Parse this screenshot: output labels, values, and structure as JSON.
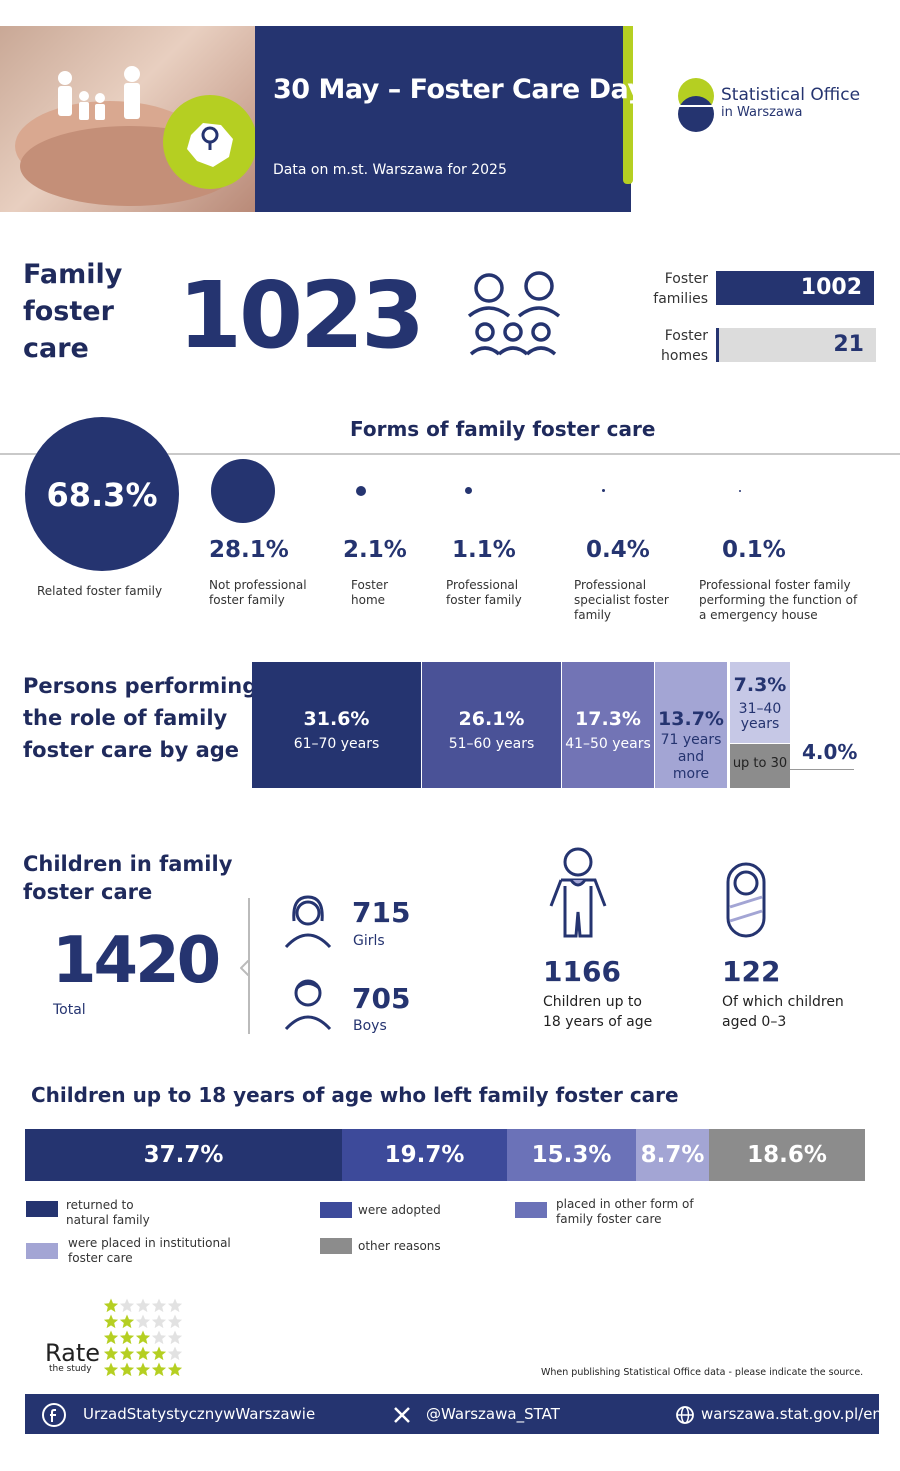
{
  "header": {
    "title": "30 May – Foster Care Day",
    "subtitle": "Data on m.st. Warszawa for 2025",
    "logo_line1": "Statistical Office",
    "logo_line2": "in Warszawa"
  },
  "family_foster_care": {
    "title_l1": "Family",
    "title_l2": "foster",
    "title_l3": "care",
    "total": "1023",
    "foster_families_label_l1": "Foster",
    "foster_families_label_l2": "families",
    "foster_families_value": "1002",
    "foster_homes_label_l1": "Foster",
    "foster_homes_label_l2": "homes",
    "foster_homes_value": "21"
  },
  "forms": {
    "title": "Forms of family foster care",
    "items": [
      {
        "pct": "68.3%",
        "label": "Related foster family"
      },
      {
        "pct": "28.1%",
        "label_l1": "Not professional",
        "label_l2": "foster family"
      },
      {
        "pct": "2.1%",
        "label_l1": "Foster",
        "label_l2": "home"
      },
      {
        "pct": "1.1%",
        "label_l1": "Professional",
        "label_l2": "foster family"
      },
      {
        "pct": "0.4%",
        "label_l1": "Professional",
        "label_l2": "specialist foster",
        "label_l3": "family"
      },
      {
        "pct": "0.1%",
        "label_l1": "Professional foster family",
        "label_l2": "performing the function of",
        "label_l3": "a emergency house"
      }
    ]
  },
  "age": {
    "title_l1": "Persons performing",
    "title_l2": "the role of family",
    "title_l3": "foster care by age",
    "groups": [
      {
        "pct": "31.6%",
        "label": "61–70 years",
        "color": "#253470"
      },
      {
        "pct": "26.1%",
        "label": "51–60 years",
        "color": "#4a5297"
      },
      {
        "pct": "17.3%",
        "label": "41–50 years",
        "color": "#7274b5"
      },
      {
        "pct": "13.7%",
        "label_l1": "71 years",
        "label_l2": "and",
        "label_l3": "more",
        "color": "#a3a5d4"
      },
      {
        "pct": "7.3%",
        "label_l1": "31–40",
        "label_l2": "years",
        "color": "#c6c8e6"
      },
      {
        "pct": "4.0%",
        "label": "up to 30",
        "color": "#8c8c8c"
      }
    ]
  },
  "children": {
    "title_l1": "Children in family",
    "title_l2": "foster care",
    "total": "1420",
    "total_label": "Total",
    "girls": "715",
    "girls_label": "Girls",
    "boys": "705",
    "boys_label": "Boys",
    "up_to_18": "1166",
    "up_to_18_label_l1": "Children up to",
    "up_to_18_label_l2": "18 years of age",
    "aged_0_3": "122",
    "aged_0_3_label_l1": "Of which children",
    "aged_0_3_label_l2": "aged 0–3"
  },
  "left_care": {
    "title": "Children up to 18 years of age who left family foster care",
    "segments": [
      {
        "pct": "37.7%",
        "value": 37.7,
        "color": "#253470"
      },
      {
        "pct": "19.7%",
        "value": 19.7,
        "color": "#3d4a9a"
      },
      {
        "pct": "15.3%",
        "value": 15.3,
        "color": "#6b72b8"
      },
      {
        "pct": "8.7%",
        "value": 8.7,
        "color": "#a3a5d4"
      },
      {
        "pct": "18.6%",
        "value": 18.6,
        "color": "#8c8c8c"
      }
    ],
    "legend": [
      {
        "l1": "returned to",
        "l2": "natural family"
      },
      {
        "l1": "were adopted"
      },
      {
        "l1": "placed in other form of",
        "l2": "family foster care"
      },
      {
        "l1": "were placed in institutional",
        "l2": "foster care"
      },
      {
        "l1": "other reasons"
      }
    ]
  },
  "rate": {
    "label": "Rate",
    "sub": "the study"
  },
  "source_note": "When publishing Statistical Office data - please indicate the source.",
  "footer": {
    "facebook": "UrzadStatystycznywWarszawie",
    "x": "@Warszawa_STAT",
    "web": "warszawa.stat.gov.pl/en/"
  }
}
